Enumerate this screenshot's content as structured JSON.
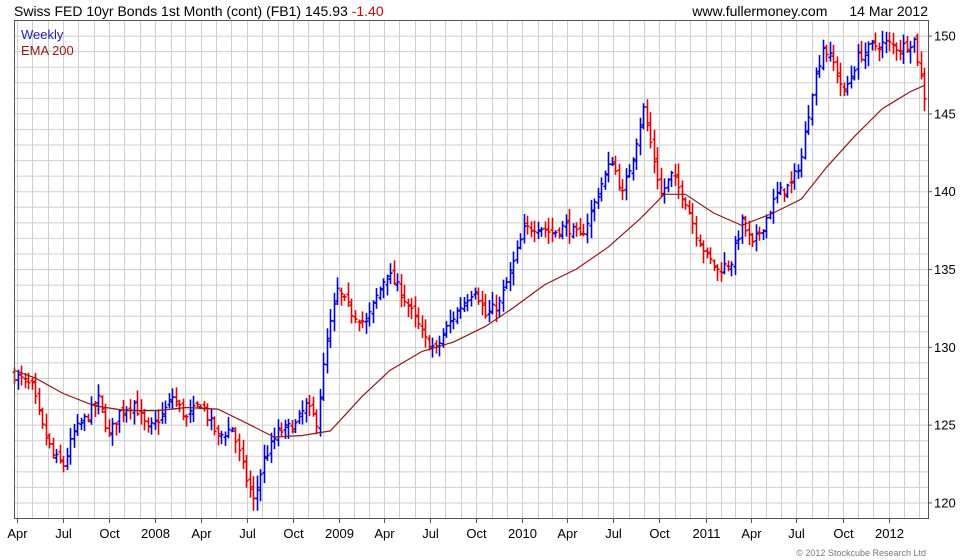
{
  "header": {
    "title": "Swiss FED 10yr Bonds 1st Month (cont) (FB1)",
    "last_price": "145.93",
    "change": "-1.40",
    "website": "www.fullermoney.com",
    "date": "14 Mar 2012"
  },
  "legend": {
    "weekly_label": "Weekly",
    "ema_label": "EMA 200"
  },
  "footer": {
    "credit": "© 2012 Stockcube Research Ltd"
  },
  "colors": {
    "up": "#0000cc",
    "down": "#dd0000",
    "ema": "#8c1a1a",
    "grid": "#cfcfcf",
    "frame": "#555555"
  },
  "chart_data": {
    "type": "candlestick",
    "series": [
      {
        "name": "Weekly",
        "style": "OHLC bars, blue up / red down"
      },
      {
        "name": "EMA 200",
        "style": "line"
      }
    ],
    "x_axis": {
      "range": [
        "2007-03-26",
        "2012-03-19"
      ],
      "tick_labels": [
        {
          "label": "Apr",
          "date": "2007-04-01"
        },
        {
          "label": "Jul",
          "date": "2007-07-01"
        },
        {
          "label": "Oct",
          "date": "2007-10-01"
        },
        {
          "label": "2008",
          "date": "2008-01-01"
        },
        {
          "label": "Apr",
          "date": "2008-04-01"
        },
        {
          "label": "Jul",
          "date": "2008-07-01"
        },
        {
          "label": "Oct",
          "date": "2008-10-01"
        },
        {
          "label": "2009",
          "date": "2009-01-01"
        },
        {
          "label": "Apr",
          "date": "2009-04-01"
        },
        {
          "label": "Jul",
          "date": "2009-07-01"
        },
        {
          "label": "Oct",
          "date": "2009-10-01"
        },
        {
          "label": "2010",
          "date": "2010-01-01"
        },
        {
          "label": "Apr",
          "date": "2010-04-01"
        },
        {
          "label": "Jul",
          "date": "2010-07-01"
        },
        {
          "label": "Oct",
          "date": "2010-10-01"
        },
        {
          "label": "2011",
          "date": "2011-01-01"
        },
        {
          "label": "Apr",
          "date": "2011-04-01"
        },
        {
          "label": "Jul",
          "date": "2011-07-01"
        },
        {
          "label": "Oct",
          "date": "2011-10-01"
        },
        {
          "label": "2012",
          "date": "2012-01-01"
        }
      ]
    },
    "y_axis": {
      "range": [
        119,
        151
      ],
      "side": "right",
      "ticks": [
        120,
        125,
        130,
        135,
        140,
        145,
        150
      ],
      "minor_grid_step": 1
    },
    "grid": true,
    "close_path": [
      [
        "2007-03-26",
        128.2
      ],
      [
        "2007-04-30",
        127.4
      ],
      [
        "2007-05-21",
        124.8
      ],
      [
        "2007-06-11",
        123.0
      ],
      [
        "2007-07-02",
        122.4
      ],
      [
        "2007-07-23",
        124.5
      ],
      [
        "2007-08-20",
        125.6
      ],
      [
        "2007-09-10",
        126.6
      ],
      [
        "2007-10-01",
        124.3
      ],
      [
        "2007-10-22",
        125.8
      ],
      [
        "2007-11-19",
        126.4
      ],
      [
        "2007-12-17",
        124.6
      ],
      [
        "2008-01-14",
        125.6
      ],
      [
        "2008-02-04",
        126.8
      ],
      [
        "2008-03-03",
        125.4
      ],
      [
        "2008-03-31",
        126.4
      ],
      [
        "2008-05-05",
        124.2
      ],
      [
        "2008-06-02",
        124.8
      ],
      [
        "2008-06-30",
        121.5
      ],
      [
        "2008-07-14",
        120.1
      ],
      [
        "2008-08-04",
        122.8
      ],
      [
        "2008-09-01",
        124.5
      ],
      [
        "2008-10-06",
        125.0
      ],
      [
        "2008-10-27",
        126.2
      ],
      [
        "2008-11-17",
        125.2
      ],
      [
        "2008-12-08",
        130.4
      ],
      [
        "2008-12-29",
        133.6
      ],
      [
        "2009-01-26",
        132.2
      ],
      [
        "2009-02-23",
        131.5
      ],
      [
        "2009-03-16",
        133.2
      ],
      [
        "2009-04-06",
        134.8
      ],
      [
        "2009-05-04",
        133.5
      ],
      [
        "2009-06-01",
        131.8
      ],
      [
        "2009-06-22",
        130.4
      ],
      [
        "2009-07-13",
        129.8
      ],
      [
        "2009-08-03",
        131.2
      ],
      [
        "2009-08-31",
        132.6
      ],
      [
        "2009-09-28",
        133.8
      ],
      [
        "2009-10-19",
        132.0
      ],
      [
        "2009-11-16",
        132.8
      ],
      [
        "2009-12-14",
        135.4
      ],
      [
        "2010-01-04",
        137.5
      ],
      [
        "2010-02-01",
        137.8
      ],
      [
        "2010-03-01",
        137.3
      ],
      [
        "2010-03-29",
        137.8
      ],
      [
        "2010-04-26",
        137.0
      ],
      [
        "2010-05-17",
        138.6
      ],
      [
        "2010-06-07",
        140.5
      ],
      [
        "2010-06-28",
        142.0
      ],
      [
        "2010-07-19",
        139.8
      ],
      [
        "2010-08-09",
        142.3
      ],
      [
        "2010-08-30",
        145.3
      ],
      [
        "2010-09-20",
        142.0
      ],
      [
        "2010-10-04",
        139.8
      ],
      [
        "2010-10-25",
        141.0
      ],
      [
        "2010-11-22",
        139.4
      ],
      [
        "2010-12-13",
        137.3
      ],
      [
        "2011-01-03",
        135.8
      ],
      [
        "2011-01-24",
        134.9
      ],
      [
        "2011-02-21",
        135.5
      ],
      [
        "2011-03-14",
        138.0
      ],
      [
        "2011-04-04",
        136.5
      ],
      [
        "2011-04-25",
        137.8
      ],
      [
        "2011-05-23",
        139.8
      ],
      [
        "2011-06-20",
        140.4
      ],
      [
        "2011-07-11",
        142.2
      ],
      [
        "2011-08-01",
        146.5
      ],
      [
        "2011-08-22",
        149.3
      ],
      [
        "2011-09-12",
        148.2
      ],
      [
        "2011-10-03",
        146.3
      ],
      [
        "2011-10-31",
        148.6
      ],
      [
        "2011-11-28",
        149.3
      ],
      [
        "2011-12-26",
        149.5
      ],
      [
        "2012-01-23",
        149.2
      ],
      [
        "2012-02-20",
        149.7
      ],
      [
        "2012-03-05",
        147.3
      ],
      [
        "2012-03-12",
        145.93
      ]
    ],
    "ema200": [
      [
        "2007-03-26",
        128.5
      ],
      [
        "2007-05-07",
        128.0
      ],
      [
        "2007-07-02",
        127.0
      ],
      [
        "2007-09-03",
        126.2
      ],
      [
        "2007-11-05",
        125.9
      ],
      [
        "2008-01-07",
        125.9
      ],
      [
        "2008-03-03",
        126.1
      ],
      [
        "2008-05-05",
        126.0
      ],
      [
        "2008-07-07",
        125.0
      ],
      [
        "2008-08-25",
        124.2
      ],
      [
        "2008-10-20",
        124.3
      ],
      [
        "2008-12-15",
        124.6
      ],
      [
        "2009-02-16",
        126.8
      ],
      [
        "2009-04-13",
        128.5
      ],
      [
        "2009-06-15",
        129.7
      ],
      [
        "2009-08-17",
        130.3
      ],
      [
        "2009-10-19",
        131.3
      ],
      [
        "2009-12-14",
        132.5
      ],
      [
        "2010-02-15",
        134.0
      ],
      [
        "2010-04-19",
        135.0
      ],
      [
        "2010-06-21",
        136.4
      ],
      [
        "2010-08-23",
        138.2
      ],
      [
        "2010-10-11",
        139.8
      ],
      [
        "2010-11-22",
        139.8
      ],
      [
        "2011-01-17",
        138.6
      ],
      [
        "2011-03-14",
        137.8
      ],
      [
        "2011-05-16",
        138.6
      ],
      [
        "2011-07-11",
        139.5
      ],
      [
        "2011-08-29",
        141.5
      ],
      [
        "2011-10-24",
        143.5
      ],
      [
        "2011-12-19",
        145.3
      ],
      [
        "2012-02-13",
        146.4
      ],
      [
        "2012-03-12",
        146.8
      ]
    ]
  }
}
